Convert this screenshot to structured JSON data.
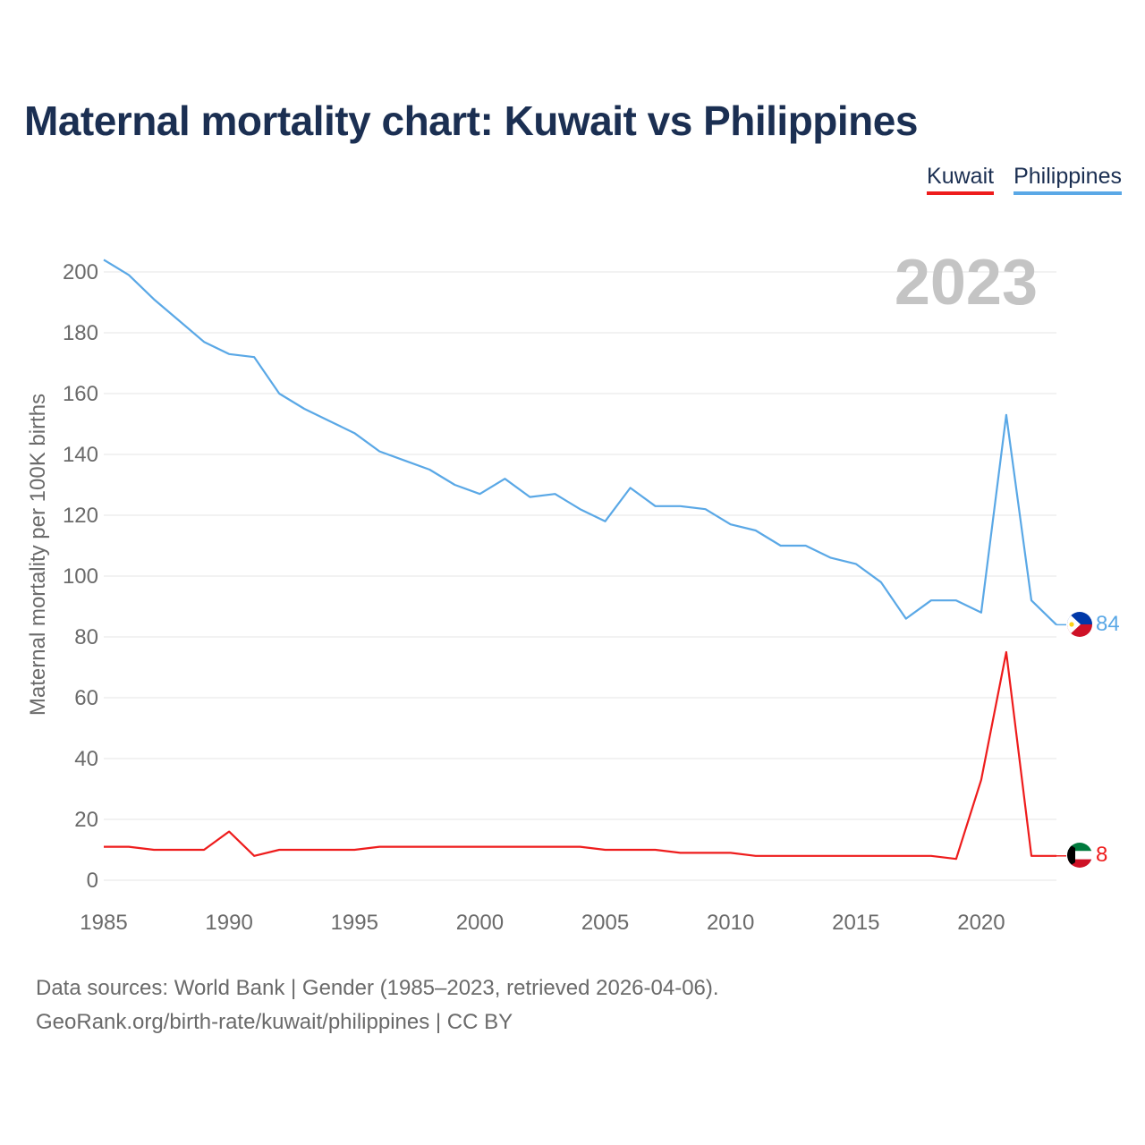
{
  "title": "Maternal mortality chart: Kuwait vs Philippines",
  "legend": [
    {
      "label": "Kuwait",
      "color": "#ee1c1c"
    },
    {
      "label": "Philippines",
      "color": "#5aa8e6"
    }
  ],
  "year_label": "2023",
  "footer": {
    "line1": "Data sources: World Bank | Gender (1985–2023, retrieved 2026-04-06).",
    "line2": "GeoRank.org/birth-rate/kuwait/philippines | CC BY"
  },
  "chart_data": {
    "type": "line",
    "title": "Maternal mortality chart: Kuwait vs Philippines",
    "xlabel": "",
    "ylabel": "Maternal mortality per 100K births",
    "xlim": [
      1985,
      2023
    ],
    "ylim": [
      0,
      210
    ],
    "x_ticks": [
      1985,
      1990,
      1995,
      2000,
      2005,
      2010,
      2015,
      2020
    ],
    "y_ticks": [
      0,
      20,
      40,
      60,
      80,
      100,
      120,
      140,
      160,
      180,
      200
    ],
    "grid": true,
    "x": [
      1985,
      1986,
      1987,
      1988,
      1989,
      1990,
      1991,
      1992,
      1993,
      1994,
      1995,
      1996,
      1997,
      1998,
      1999,
      2000,
      2001,
      2002,
      2003,
      2004,
      2005,
      2006,
      2007,
      2008,
      2009,
      2010,
      2011,
      2012,
      2013,
      2014,
      2015,
      2016,
      2017,
      2018,
      2019,
      2020,
      2021,
      2022,
      2023
    ],
    "series": [
      {
        "name": "Philippines",
        "color": "#5aa8e6",
        "end_label": "84",
        "flag": "philippines-flag-icon",
        "values": [
          204,
          199,
          191,
          184,
          177,
          173,
          172,
          160,
          155,
          151,
          147,
          141,
          138,
          135,
          130,
          127,
          132,
          126,
          127,
          122,
          118,
          129,
          123,
          123,
          122,
          117,
          115,
          110,
          110,
          106,
          104,
          98,
          86,
          92,
          92,
          88,
          153,
          92,
          84
        ]
      },
      {
        "name": "Kuwait",
        "color": "#ee1c1c",
        "end_label": "8",
        "flag": "kuwait-flag-icon",
        "values": [
          11,
          11,
          10,
          10,
          10,
          16,
          8,
          10,
          10,
          10,
          10,
          11,
          11,
          11,
          11,
          11,
          11,
          11,
          11,
          11,
          10,
          10,
          10,
          9,
          9,
          9,
          8,
          8,
          8,
          8,
          8,
          8,
          8,
          8,
          7,
          33,
          75,
          8,
          8
        ]
      }
    ]
  }
}
